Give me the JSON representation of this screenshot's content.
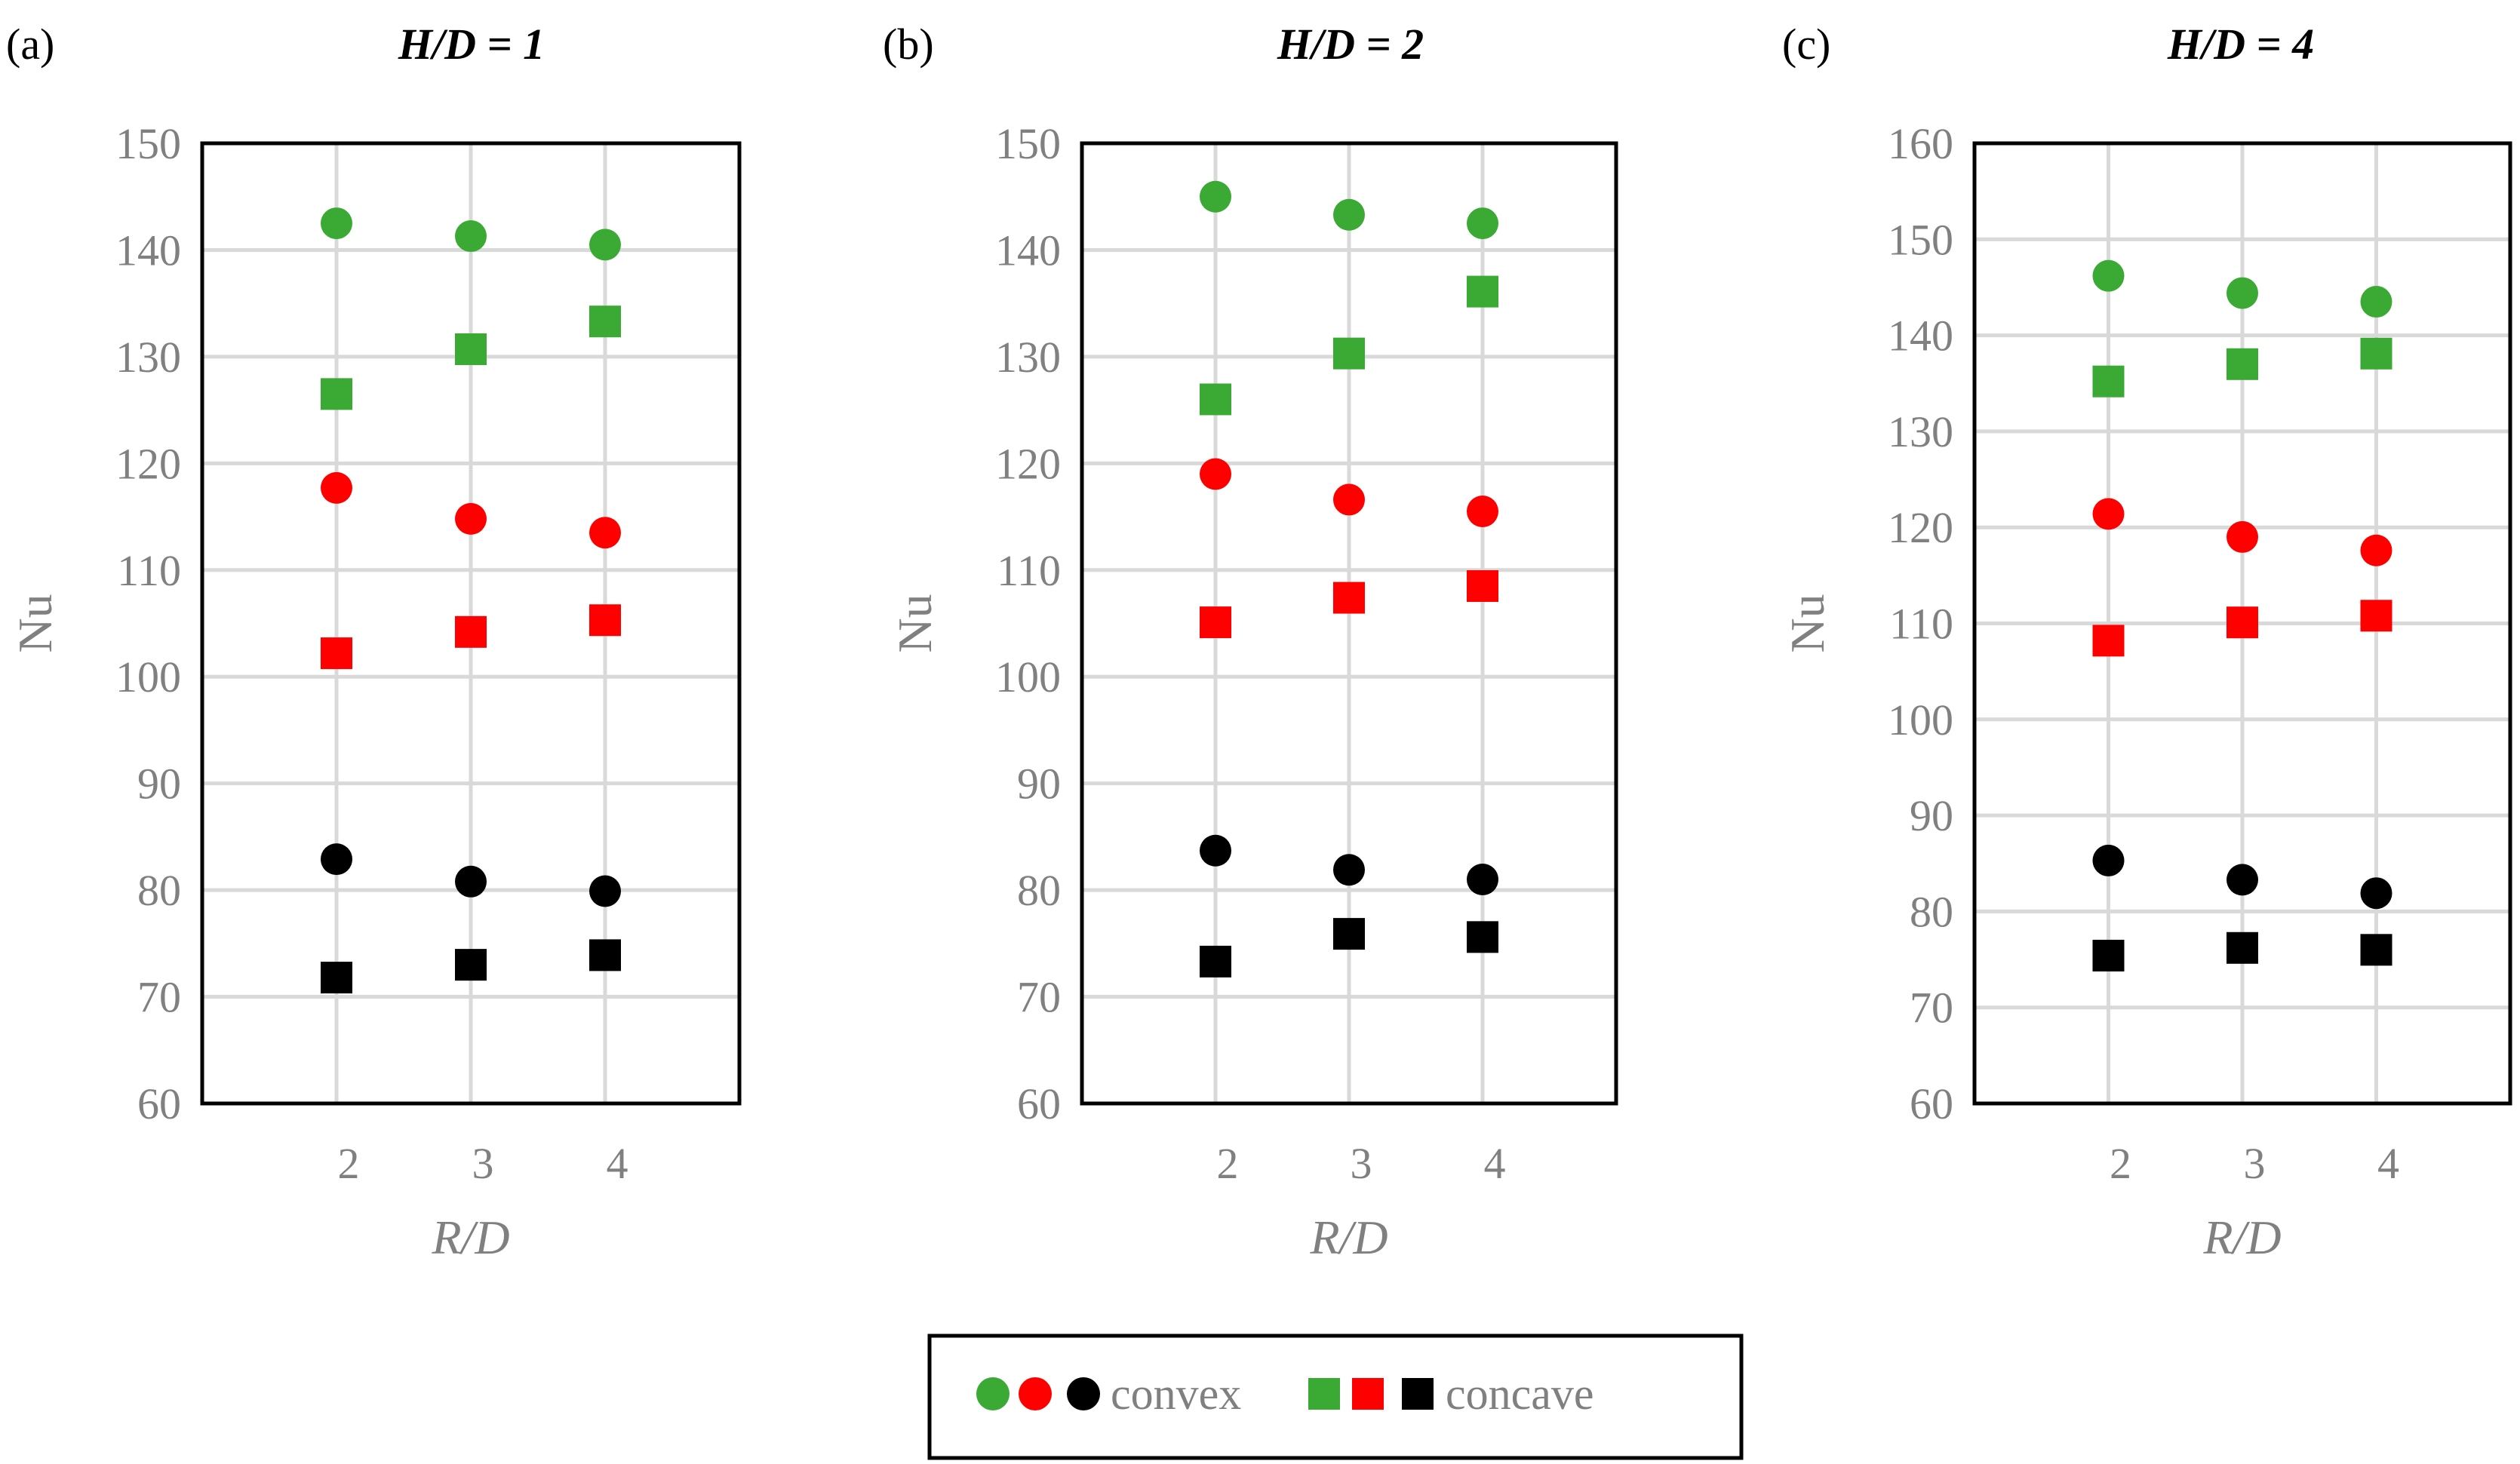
{
  "chart_data": [
    {
      "type": "scatter",
      "panel_label": "(a)",
      "title": "H/D = 1",
      "xlabel": "R/D",
      "ylabel": "Nu",
      "categories": [
        "2",
        "3",
        "4"
      ],
      "x": [
        2,
        3,
        4
      ],
      "xlim": [
        1,
        5
      ],
      "ylim": [
        60,
        150
      ],
      "yticks": [
        "60",
        "70",
        "80",
        "90",
        "100",
        "110",
        "120",
        "130",
        "140",
        "150"
      ],
      "grid": true,
      "series": [
        {
          "name": "convex",
          "color": "#3aaa35",
          "marker": "circle",
          "values": [
            142.5,
            141.3,
            140.5
          ]
        },
        {
          "name": "concave",
          "color": "#3aaa35",
          "marker": "square",
          "values": [
            126.5,
            130.7,
            133.3
          ]
        },
        {
          "name": "convex",
          "color": "#ff0000",
          "marker": "circle",
          "values": [
            117.7,
            114.8,
            113.5
          ]
        },
        {
          "name": "concave",
          "color": "#ff0000",
          "marker": "square",
          "values": [
            102.2,
            104.2,
            105.3
          ]
        },
        {
          "name": "convex",
          "color": "#000000",
          "marker": "circle",
          "values": [
            82.9,
            80.8,
            79.9
          ]
        },
        {
          "name": "concave",
          "color": "#000000",
          "marker": "square",
          "values": [
            71.8,
            73.0,
            73.9
          ]
        }
      ]
    },
    {
      "type": "scatter",
      "panel_label": "(b)",
      "title": "H/D = 2",
      "xlabel": "R/D",
      "ylabel": "Nu",
      "categories": [
        "2",
        "3",
        "4"
      ],
      "x": [
        2,
        3,
        4
      ],
      "xlim": [
        1,
        5
      ],
      "ylim": [
        60,
        150
      ],
      "yticks": [
        "60",
        "70",
        "80",
        "90",
        "100",
        "110",
        "120",
        "130",
        "140",
        "150"
      ],
      "grid": true,
      "series": [
        {
          "name": "convex",
          "color": "#3aaa35",
          "marker": "circle",
          "values": [
            145.0,
            143.3,
            142.5
          ]
        },
        {
          "name": "concave",
          "color": "#3aaa35",
          "marker": "square",
          "values": [
            126.0,
            130.3,
            136.1
          ]
        },
        {
          "name": "convex",
          "color": "#ff0000",
          "marker": "circle",
          "values": [
            119.0,
            116.6,
            115.5
          ]
        },
        {
          "name": "concave",
          "color": "#ff0000",
          "marker": "square",
          "values": [
            105.1,
            107.4,
            108.5
          ]
        },
        {
          "name": "convex",
          "color": "#000000",
          "marker": "circle",
          "values": [
            83.7,
            81.9,
            81.0
          ]
        },
        {
          "name": "concave",
          "color": "#000000",
          "marker": "square",
          "values": [
            73.3,
            75.9,
            75.6
          ]
        }
      ]
    },
    {
      "type": "scatter",
      "panel_label": "(c)",
      "title": "H/D = 4",
      "xlabel": "R/D",
      "ylabel": "Nu",
      "categories": [
        "2",
        "3",
        "4"
      ],
      "x": [
        2,
        3,
        4
      ],
      "xlim": [
        1,
        5
      ],
      "ylim": [
        60,
        160
      ],
      "yticks": [
        "60",
        "70",
        "80",
        "90",
        "100",
        "110",
        "120",
        "130",
        "140",
        "150",
        "160"
      ],
      "grid": true,
      "series": [
        {
          "name": "convex",
          "color": "#3aaa35",
          "marker": "circle",
          "values": [
            146.2,
            144.4,
            143.5
          ]
        },
        {
          "name": "concave",
          "color": "#3aaa35",
          "marker": "square",
          "values": [
            135.2,
            137.0,
            138.1
          ]
        },
        {
          "name": "convex",
          "color": "#ff0000",
          "marker": "circle",
          "values": [
            121.4,
            119.0,
            117.6
          ]
        },
        {
          "name": "concave",
          "color": "#ff0000",
          "marker": "square",
          "values": [
            108.2,
            110.1,
            110.8
          ]
        },
        {
          "name": "convex",
          "color": "#000000",
          "marker": "circle",
          "values": [
            85.3,
            83.3,
            81.9
          ]
        },
        {
          "name": "concave",
          "color": "#000000",
          "marker": "square",
          "values": [
            75.4,
            76.2,
            76.0
          ]
        }
      ]
    }
  ],
  "legend": {
    "position": "bottom-center",
    "entries": [
      {
        "label": "convex",
        "marker": "circle",
        "colors": [
          "#3aaa35",
          "#ff0000",
          "#000000"
        ]
      },
      {
        "label": "concave",
        "marker": "square",
        "colors": [
          "#3aaa35",
          "#ff0000",
          "#000000"
        ]
      }
    ]
  }
}
